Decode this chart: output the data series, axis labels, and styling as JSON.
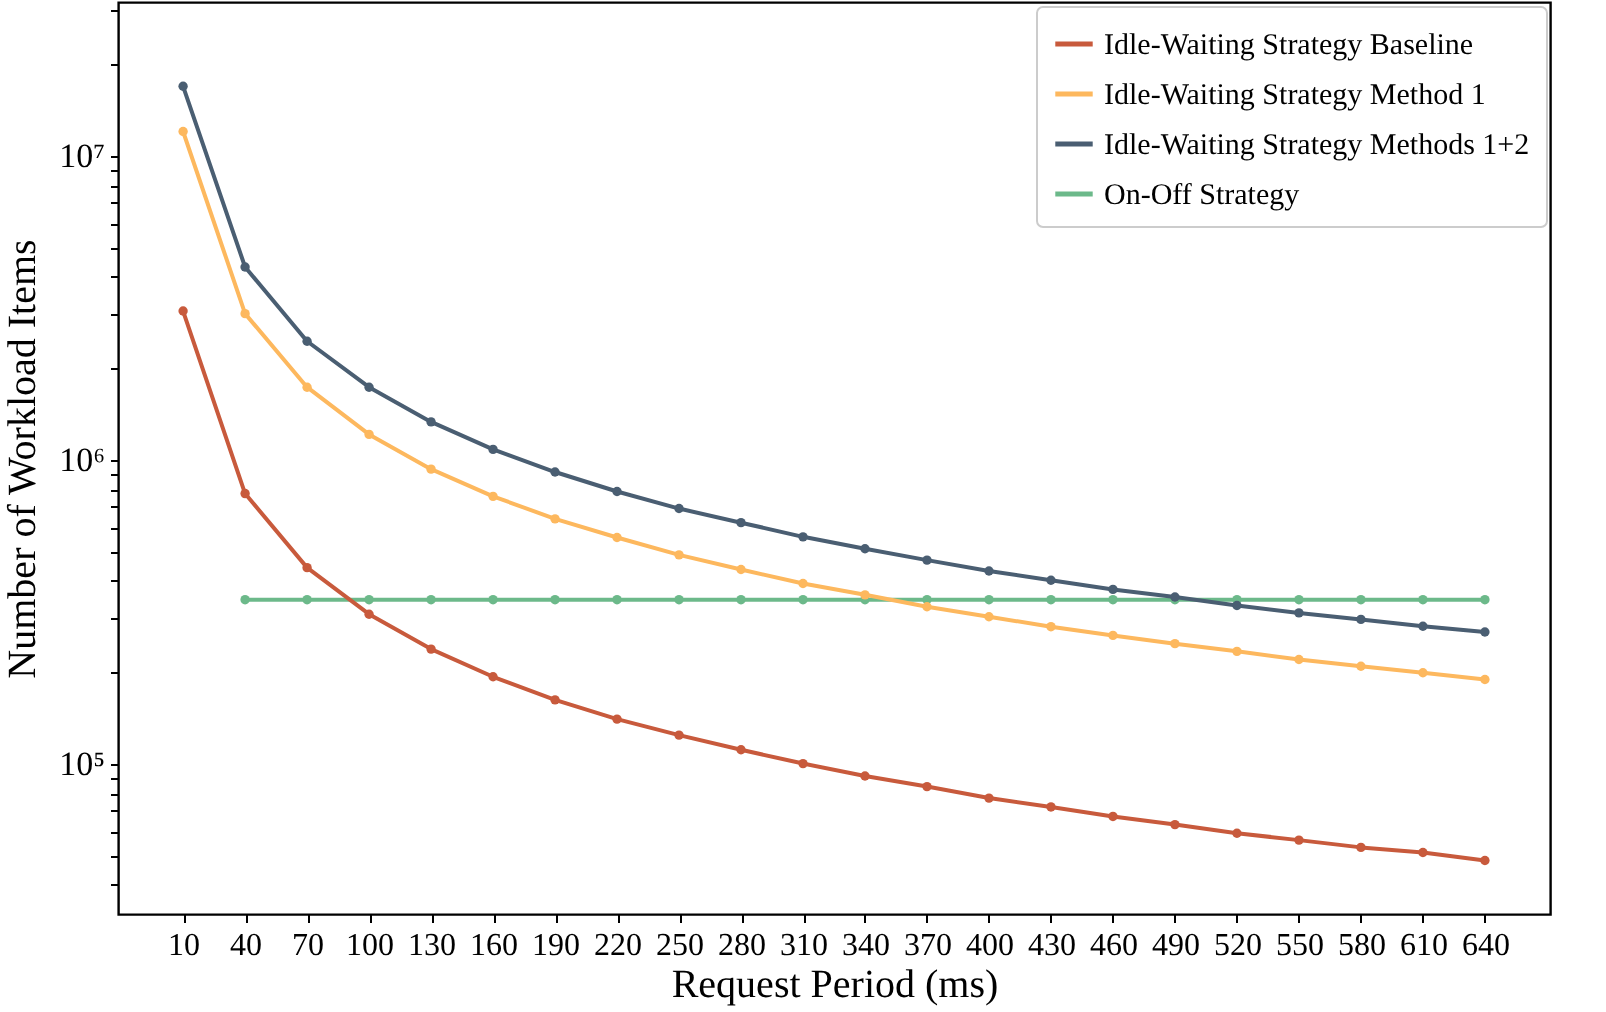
{
  "chart_data": {
    "type": "line",
    "xlabel": "Request Period (ms)",
    "ylabel": "Number of Workload Items",
    "log": "y",
    "grid": false,
    "legend": "top right",
    "marker": "circle",
    "line_style": "solid",
    "x": [
      10,
      40,
      70,
      100,
      130,
      160,
      190,
      220,
      250,
      280,
      310,
      340,
      370,
      400,
      430,
      460,
      490,
      520,
      550,
      580,
      610,
      640
    ],
    "xlim": [
      -21.5,
      671.5
    ],
    "xticks": [
      10,
      40,
      70,
      100,
      130,
      160,
      190,
      220,
      250,
      280,
      310,
      340,
      370,
      400,
      430,
      460,
      490,
      520,
      550,
      580,
      610,
      640
    ],
    "ylim": [
      32000,
      32000000
    ],
    "yticks": [
      {
        "value": 40000,
        "label": null
      },
      {
        "value": 50000,
        "label": null
      },
      {
        "value": 60000,
        "label": null
      },
      {
        "value": 70000,
        "label": null
      },
      {
        "value": 80000,
        "label": null
      },
      {
        "value": 90000,
        "label": null
      },
      {
        "value": 100000,
        "label": "10⁵"
      },
      {
        "value": 200000,
        "label": null
      },
      {
        "value": 300000,
        "label": null
      },
      {
        "value": 400000,
        "label": null
      },
      {
        "value": 500000,
        "label": null
      },
      {
        "value": 600000,
        "label": null
      },
      {
        "value": 700000,
        "label": null
      },
      {
        "value": 800000,
        "label": null
      },
      {
        "value": 900000,
        "label": null
      },
      {
        "value": 1000000,
        "label": "10⁶"
      },
      {
        "value": 2000000,
        "label": null
      },
      {
        "value": 3000000,
        "label": null
      },
      {
        "value": 4000000,
        "label": null
      },
      {
        "value": 5000000,
        "label": null
      },
      {
        "value": 6000000,
        "label": null
      },
      {
        "value": 7000000,
        "label": null
      },
      {
        "value": 8000000,
        "label": null
      },
      {
        "value": 9000000,
        "label": null
      },
      {
        "value": 10000000,
        "label": "10⁷"
      },
      {
        "value": 20000000,
        "label": null
      },
      {
        "value": 30000000,
        "label": null
      }
    ],
    "series": [
      {
        "name": "Idle-Waiting Strategy Baseline",
        "color": "#c85a3c",
        "values": [
          3080000,
          773000,
          441000,
          310000,
          238000,
          193000,
          162000,
          140000,
          124000,
          111000,
          100000,
          91000,
          84000,
          77000,
          72000,
          67000,
          63000,
          59000,
          56000,
          53000,
          51000,
          48000
        ]
      },
      {
        "name": "Idle-Waiting Strategy Method 1",
        "color": "#fdb85e",
        "values": [
          12000000,
          3020000,
          1730000,
          1210000,
          930000,
          757000,
          638000,
          554000,
          486000,
          435000,
          391000,
          359000,
          328000,
          304000,
          282000,
          264000,
          248000,
          234000,
          220000,
          209000,
          199000,
          189000
        ]
      },
      {
        "name": "Idle-Waiting Strategy Methods 1+2",
        "color": "#4a5e72",
        "values": [
          16900000,
          4300000,
          2450000,
          1730000,
          1330000,
          1080000,
          910000,
          785000,
          690000,
          620000,
          557000,
          509000,
          467000,
          430000,
          401000,
          374000,
          353000,
          331000,
          313000,
          298000,
          283000,
          271000
        ]
      },
      {
        "name": "On-Off Strategy",
        "color": "#6cb98a",
        "x": [
          40,
          70,
          100,
          130,
          160,
          190,
          220,
          250,
          280,
          310,
          340,
          370,
          400,
          430,
          460,
          490,
          520,
          550,
          580,
          610,
          640
        ],
        "values": [
          346000,
          346000,
          346000,
          346000,
          346000,
          346000,
          346000,
          346000,
          346000,
          346000,
          346000,
          346000,
          346000,
          346000,
          346000,
          346000,
          346000,
          346000,
          346000,
          346000,
          346000
        ]
      }
    ]
  }
}
